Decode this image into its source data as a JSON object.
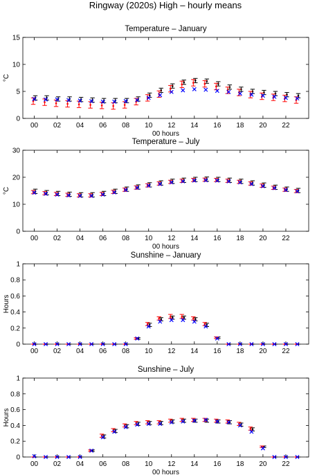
{
  "figure": {
    "title": "Ringway (2020s) High – hourly means"
  },
  "colors": {
    "black": "#000000",
    "red": "#ff0000",
    "blue": "#0000ff"
  },
  "chart_data": [
    {
      "type": "scatter",
      "title": "Temperature – January",
      "xlabel": "00 hours",
      "ylabel": "°C",
      "ylim": [
        0,
        15
      ],
      "yticks": [
        0,
        5,
        10,
        15
      ],
      "xlim": [
        -1,
        24
      ],
      "xticks": [
        0,
        2,
        4,
        6,
        8,
        10,
        12,
        14,
        16,
        18,
        20,
        22
      ],
      "xticklabels": [
        "00",
        "02",
        "04",
        "06",
        "08",
        "10",
        "12",
        "14",
        "16",
        "18",
        "20",
        "22"
      ],
      "x": [
        0,
        1,
        2,
        3,
        4,
        5,
        6,
        7,
        8,
        9,
        10,
        11,
        12,
        13,
        14,
        15,
        16,
        17,
        18,
        19,
        20,
        21,
        22,
        23
      ],
      "series": [
        {
          "style": "black-errorbar",
          "values": [
            3.8,
            3.8,
            3.6,
            3.6,
            3.5,
            3.4,
            3.3,
            3.3,
            3.3,
            3.6,
            4.3,
            5.2,
            6.0,
            6.7,
            7.0,
            6.9,
            6.4,
            5.8,
            5.4,
            5.0,
            4.8,
            4.6,
            4.4,
            4.2
          ],
          "lower": [
            3.4,
            3.4,
            3.2,
            3.2,
            3.1,
            3.0,
            2.9,
            2.9,
            2.9,
            3.2,
            3.9,
            4.8,
            5.6,
            6.3,
            6.6,
            6.5,
            6.0,
            5.4,
            5.0,
            4.6,
            4.4,
            4.2,
            4.0,
            3.8
          ],
          "upper": [
            4.2,
            4.2,
            4.0,
            4.0,
            3.9,
            3.8,
            3.7,
            3.7,
            3.7,
            4.0,
            4.7,
            5.6,
            6.4,
            7.1,
            7.4,
            7.3,
            6.8,
            6.2,
            5.8,
            5.4,
            5.2,
            5.0,
            4.8,
            4.6
          ]
        },
        {
          "style": "red-errorbar",
          "values": [
            3.2,
            3.0,
            2.8,
            2.7,
            2.6,
            2.5,
            2.4,
            2.3,
            2.5,
            3.1,
            3.8,
            4.5,
            5.5,
            6.3,
            6.6,
            6.4,
            5.9,
            5.2,
            4.8,
            4.4,
            4.1,
            3.9,
            3.7,
            3.4
          ],
          "lower": [
            2.6,
            2.4,
            2.2,
            2.1,
            2.0,
            1.9,
            1.8,
            1.7,
            1.9,
            2.5,
            3.2,
            3.9,
            4.9,
            5.7,
            6.0,
            5.8,
            5.3,
            4.6,
            4.2,
            3.8,
            3.5,
            3.3,
            3.1,
            2.8
          ],
          "upper": [
            3.8,
            3.6,
            3.4,
            3.3,
            3.2,
            3.1,
            3.0,
            2.9,
            3.1,
            3.7,
            4.4,
            5.1,
            6.1,
            6.9,
            7.2,
            7.0,
            6.5,
            5.8,
            5.4,
            5.0,
            4.7,
            4.5,
            4.3,
            4.0
          ]
        },
        {
          "style": "blue-cross",
          "values": [
            3.6,
            3.5,
            3.5,
            3.4,
            3.3,
            3.2,
            3.1,
            3.1,
            3.2,
            3.4,
            3.8,
            4.3,
            4.9,
            5.2,
            5.4,
            5.3,
            5.1,
            4.9,
            4.6,
            4.4,
            4.2,
            4.0,
            3.8,
            3.7
          ]
        }
      ]
    },
    {
      "type": "scatter",
      "title": "Temperature – July",
      "xlabel": "00 hours",
      "ylabel": "°C",
      "ylim": [
        0,
        30
      ],
      "yticks": [
        0,
        10,
        20,
        30
      ],
      "xlim": [
        -1,
        24
      ],
      "xticks": [
        0,
        2,
        4,
        6,
        8,
        10,
        12,
        14,
        16,
        18,
        20,
        22
      ],
      "xticklabels": [
        "00",
        "02",
        "04",
        "06",
        "08",
        "10",
        "12",
        "14",
        "16",
        "18",
        "20",
        "22"
      ],
      "x": [
        0,
        1,
        2,
        3,
        4,
        5,
        6,
        7,
        8,
        9,
        10,
        11,
        12,
        13,
        14,
        15,
        16,
        17,
        18,
        19,
        20,
        21,
        22,
        23
      ],
      "series": [
        {
          "style": "black-errorbar",
          "values": [
            14.8,
            14.3,
            14.0,
            13.7,
            13.5,
            13.5,
            14.0,
            14.8,
            15.6,
            16.4,
            17.2,
            17.9,
            18.5,
            18.9,
            19.2,
            19.3,
            19.2,
            18.9,
            18.5,
            17.9,
            17.1,
            16.3,
            15.6,
            15.1
          ],
          "lower": [
            14.0,
            13.5,
            13.2,
            12.9,
            12.7,
            12.7,
            13.2,
            14.0,
            14.8,
            15.6,
            16.4,
            17.1,
            17.7,
            18.1,
            18.4,
            18.5,
            18.4,
            18.1,
            17.7,
            17.1,
            16.3,
            15.5,
            14.8,
            14.3
          ],
          "upper": [
            15.6,
            15.1,
            14.8,
            14.5,
            14.3,
            14.3,
            14.8,
            15.6,
            16.4,
            17.2,
            18.0,
            18.7,
            19.3,
            19.7,
            20.0,
            20.1,
            20.0,
            19.7,
            19.3,
            18.7,
            17.9,
            17.1,
            16.4,
            15.9
          ]
        },
        {
          "style": "red-errorbar",
          "values": [
            14.5,
            14.1,
            13.8,
            13.5,
            13.3,
            13.3,
            13.8,
            14.6,
            15.4,
            16.2,
            17.0,
            17.7,
            18.3,
            18.7,
            19.0,
            19.1,
            19.0,
            18.7,
            18.3,
            17.7,
            16.9,
            16.1,
            15.4,
            14.9
          ],
          "lower": [
            13.9,
            13.5,
            13.2,
            12.9,
            12.7,
            12.7,
            13.2,
            14.0,
            14.8,
            15.6,
            16.4,
            17.1,
            17.7,
            18.1,
            18.4,
            18.5,
            18.4,
            18.1,
            17.7,
            17.1,
            16.3,
            15.5,
            14.8,
            14.3
          ],
          "upper": [
            15.1,
            14.7,
            14.4,
            14.1,
            13.9,
            13.9,
            14.4,
            15.2,
            16.0,
            16.8,
            17.6,
            18.3,
            18.9,
            19.3,
            19.6,
            19.7,
            19.6,
            19.3,
            18.9,
            18.3,
            17.5,
            16.7,
            16.0,
            15.5
          ]
        },
        {
          "style": "blue-cross",
          "values": [
            14.3,
            13.9,
            13.6,
            13.3,
            13.1,
            13.1,
            13.6,
            14.4,
            15.3,
            16.1,
            16.9,
            17.5,
            18.1,
            18.5,
            18.8,
            18.9,
            18.8,
            18.5,
            18.1,
            17.5,
            16.7,
            16.0,
            15.3,
            14.8
          ]
        }
      ]
    },
    {
      "type": "scatter",
      "title": "Sunshine – January",
      "xlabel": "",
      "ylabel": "Hours",
      "ylim": [
        0,
        1
      ],
      "yticks": [
        0,
        0.2,
        0.4,
        0.6,
        0.8,
        1
      ],
      "xlim": [
        -1,
        24
      ],
      "xticks": [
        0,
        2,
        4,
        6,
        8,
        10,
        12,
        14,
        16,
        18,
        20,
        22
      ],
      "xticklabels": [
        "00",
        "02",
        "04",
        "06",
        "08",
        "10",
        "12",
        "14",
        "16",
        "18",
        "20",
        "22"
      ],
      "x": [
        0,
        1,
        2,
        3,
        4,
        5,
        6,
        7,
        8,
        9,
        10,
        11,
        12,
        13,
        14,
        15,
        16,
        17,
        18,
        19,
        20,
        21,
        22,
        23
      ],
      "series": [
        {
          "style": "black-errorbar",
          "values": [
            0,
            0,
            0,
            0,
            0,
            0,
            0,
            0,
            0,
            0.07,
            0.24,
            0.31,
            0.33,
            0.33,
            0.31,
            0.24,
            0.08,
            0,
            0,
            0,
            0,
            0,
            0,
            0
          ],
          "lower": [
            0,
            0,
            0,
            0,
            0,
            0,
            0,
            0,
            0,
            0.06,
            0.22,
            0.29,
            0.31,
            0.31,
            0.29,
            0.22,
            0.07,
            0,
            0,
            0,
            0,
            0,
            0,
            0
          ],
          "upper": [
            0,
            0,
            0,
            0,
            0,
            0,
            0,
            0,
            0,
            0.08,
            0.26,
            0.33,
            0.35,
            0.35,
            0.33,
            0.26,
            0.09,
            0,
            0,
            0,
            0,
            0,
            0,
            0
          ]
        },
        {
          "style": "red-errorbar",
          "values": [
            0,
            0,
            0,
            0,
            0,
            0,
            0,
            0,
            0,
            0.07,
            0.25,
            0.32,
            0.34,
            0.34,
            0.32,
            0.25,
            0.08,
            0,
            0,
            0,
            0,
            0,
            0,
            0
          ],
          "lower": [
            0,
            0,
            0,
            0,
            0,
            0,
            0,
            0,
            0,
            0.06,
            0.23,
            0.3,
            0.32,
            0.32,
            0.3,
            0.23,
            0.07,
            0,
            0,
            0,
            0,
            0,
            0,
            0
          ],
          "upper": [
            0,
            0,
            0,
            0,
            0,
            0,
            0,
            0,
            0,
            0.08,
            0.27,
            0.34,
            0.37,
            0.37,
            0.34,
            0.27,
            0.09,
            0,
            0,
            0,
            0,
            0,
            0,
            0
          ]
        },
        {
          "style": "blue-cross",
          "values": [
            0,
            0,
            0,
            0,
            0,
            0,
            0,
            0,
            0,
            0.07,
            0.22,
            0.28,
            0.3,
            0.3,
            0.28,
            0.22,
            0.07,
            0,
            0,
            0,
            0,
            0,
            0,
            0
          ]
        }
      ]
    },
    {
      "type": "scatter",
      "title": "Sunshine – July",
      "xlabel": "00 hours",
      "ylabel": "Hours",
      "ylim": [
        0,
        1
      ],
      "yticks": [
        0,
        0.2,
        0.4,
        0.6,
        0.8,
        1
      ],
      "xlim": [
        -1,
        24
      ],
      "xticks": [
        0,
        2,
        4,
        6,
        8,
        10,
        12,
        14,
        16,
        18,
        20,
        22
      ],
      "xticklabels": [
        "00",
        "02",
        "04",
        "06",
        "08",
        "10",
        "12",
        "14",
        "16",
        "18",
        "20",
        "22"
      ],
      "x": [
        0,
        1,
        2,
        3,
        4,
        5,
        6,
        7,
        8,
        9,
        10,
        11,
        12,
        13,
        14,
        15,
        16,
        17,
        18,
        19,
        20,
        21,
        22,
        23
      ],
      "series": [
        {
          "style": "black-errorbar",
          "values": [
            0,
            0,
            0,
            0,
            0,
            0.08,
            0.26,
            0.33,
            0.39,
            0.42,
            0.43,
            0.43,
            0.45,
            0.46,
            0.46,
            0.46,
            0.45,
            0.44,
            0.41,
            0.35,
            0.13,
            0,
            0,
            0
          ],
          "lower": [
            0,
            0,
            0,
            0,
            0,
            0.07,
            0.24,
            0.31,
            0.37,
            0.4,
            0.41,
            0.41,
            0.43,
            0.44,
            0.44,
            0.44,
            0.43,
            0.42,
            0.39,
            0.33,
            0.12,
            0,
            0,
            0
          ],
          "upper": [
            0,
            0,
            0,
            0,
            0,
            0.09,
            0.28,
            0.35,
            0.41,
            0.44,
            0.45,
            0.45,
            0.47,
            0.48,
            0.48,
            0.48,
            0.47,
            0.46,
            0.43,
            0.37,
            0.14,
            0,
            0,
            0
          ]
        },
        {
          "style": "red-errorbar",
          "values": [
            0,
            0,
            0,
            0,
            0,
            0.08,
            0.27,
            0.34,
            0.4,
            0.43,
            0.44,
            0.44,
            0.46,
            0.47,
            0.47,
            0.47,
            0.46,
            0.45,
            0.42,
            0.36,
            0.13,
            0,
            0,
            0
          ],
          "lower": [
            0,
            0,
            0,
            0,
            0,
            0.07,
            0.25,
            0.32,
            0.38,
            0.41,
            0.42,
            0.42,
            0.44,
            0.45,
            0.45,
            0.45,
            0.44,
            0.43,
            0.4,
            0.34,
            0.12,
            0,
            0,
            0
          ],
          "upper": [
            0,
            0,
            0,
            0,
            0,
            0.09,
            0.29,
            0.36,
            0.42,
            0.45,
            0.46,
            0.46,
            0.48,
            0.49,
            0.49,
            0.49,
            0.48,
            0.47,
            0.44,
            0.38,
            0.14,
            0,
            0,
            0
          ]
        },
        {
          "style": "blue-cross",
          "values": [
            0.01,
            0,
            0,
            0,
            0,
            0.08,
            0.25,
            0.32,
            0.38,
            0.41,
            0.42,
            0.42,
            0.44,
            0.45,
            0.46,
            0.47,
            0.45,
            0.44,
            0.4,
            0.32,
            0.11,
            0,
            0,
            0
          ]
        }
      ]
    }
  ]
}
